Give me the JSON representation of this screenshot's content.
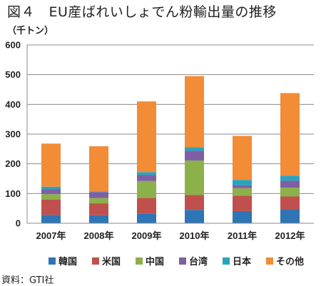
{
  "figure": {
    "title": "図４　EU産ばれいしょでん粉輸出量の推移",
    "unit": "（千トン）",
    "source": "資料：GTI社"
  },
  "chart_data": {
    "type": "bar",
    "stacked": true,
    "categories": [
      "2007年",
      "2008年",
      "2009年",
      "2010年",
      "2011年",
      "2012年"
    ],
    "ylim": [
      0,
      600
    ],
    "yticks": [
      0,
      100,
      200,
      300,
      400,
      500,
      600
    ],
    "grid": true,
    "legend_position": "bottom",
    "series": [
      {
        "name": "韓国",
        "color": "#2e75b6",
        "values": [
          28,
          27,
          33,
          45,
          41,
          47
        ]
      },
      {
        "name": "米国",
        "color": "#c0504d",
        "values": [
          52,
          40,
          52,
          50,
          52,
          43
        ]
      },
      {
        "name": "中国",
        "color": "#8cb04a",
        "values": [
          18,
          18,
          57,
          116,
          25,
          30
        ]
      },
      {
        "name": "台湾",
        "color": "#7f5fa4",
        "values": [
          16,
          20,
          20,
          33,
          10,
          23
        ]
      },
      {
        "name": "日本",
        "color": "#2aa3bd",
        "values": [
          9,
          2,
          10,
          12,
          18,
          17
        ]
      },
      {
        "name": "その他",
        "color": "#f28c36",
        "values": [
          145,
          152,
          238,
          239,
          148,
          278
        ]
      }
    ]
  }
}
